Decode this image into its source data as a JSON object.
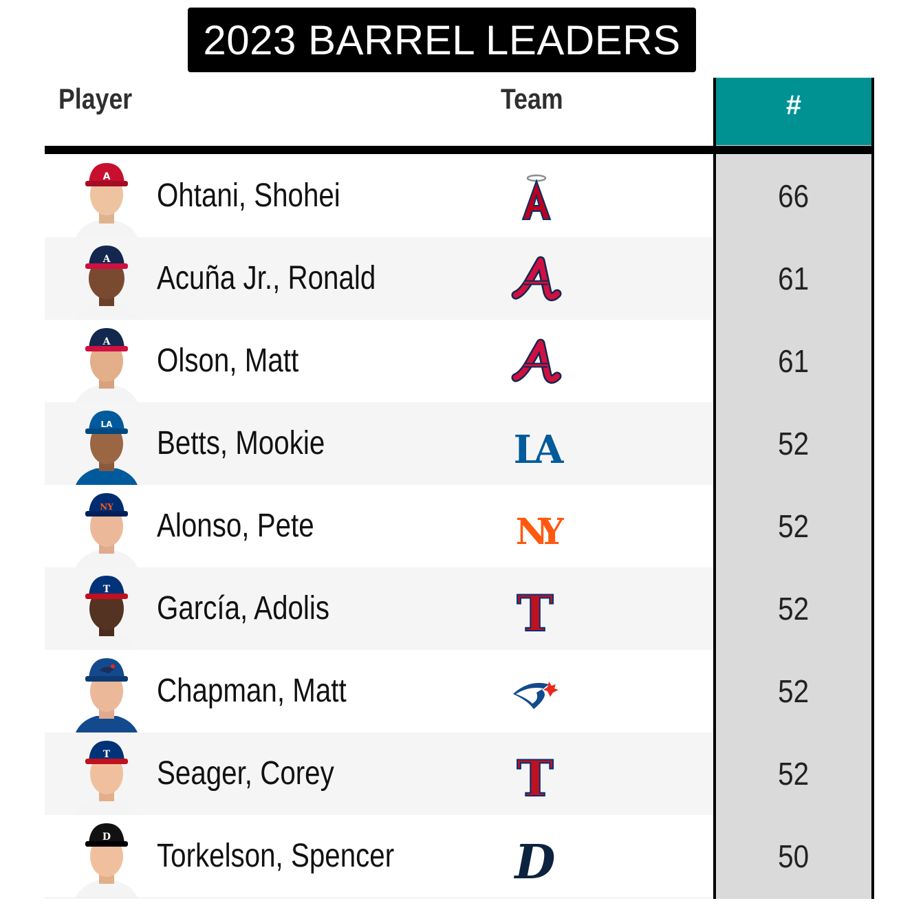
{
  "title": "2023 BARREL LEADERS",
  "headers": {
    "player": "Player",
    "team": "Team",
    "count": "#"
  },
  "rows": [
    {
      "player": "Ohtani, Shohei",
      "team_icon": "angels-logo-icon",
      "count": "66"
    },
    {
      "player": "Acuña Jr., Ronald",
      "team_icon": "braves-logo-icon",
      "count": "61"
    },
    {
      "player": "Olson, Matt",
      "team_icon": "braves-logo-icon",
      "count": "61"
    },
    {
      "player": "Betts, Mookie",
      "team_icon": "dodgers-logo-icon",
      "count": "52"
    },
    {
      "player": "Alonso, Pete",
      "team_icon": "mets-logo-icon",
      "count": "52"
    },
    {
      "player": "García, Adolis",
      "team_icon": "rangers-logo-icon",
      "count": "52"
    },
    {
      "player": "Chapman, Matt",
      "team_icon": "bluejays-logo-icon",
      "count": "52"
    },
    {
      "player": "Seager, Corey",
      "team_icon": "rangers-logo-icon",
      "count": "52"
    },
    {
      "player": "Torkelson, Spencer",
      "team_icon": "tigers-logo-icon",
      "count": "50"
    }
  ],
  "colors": {
    "header_accent": "#009293",
    "count_column": "#dadada",
    "row_alt": "#f5f5f5"
  }
}
